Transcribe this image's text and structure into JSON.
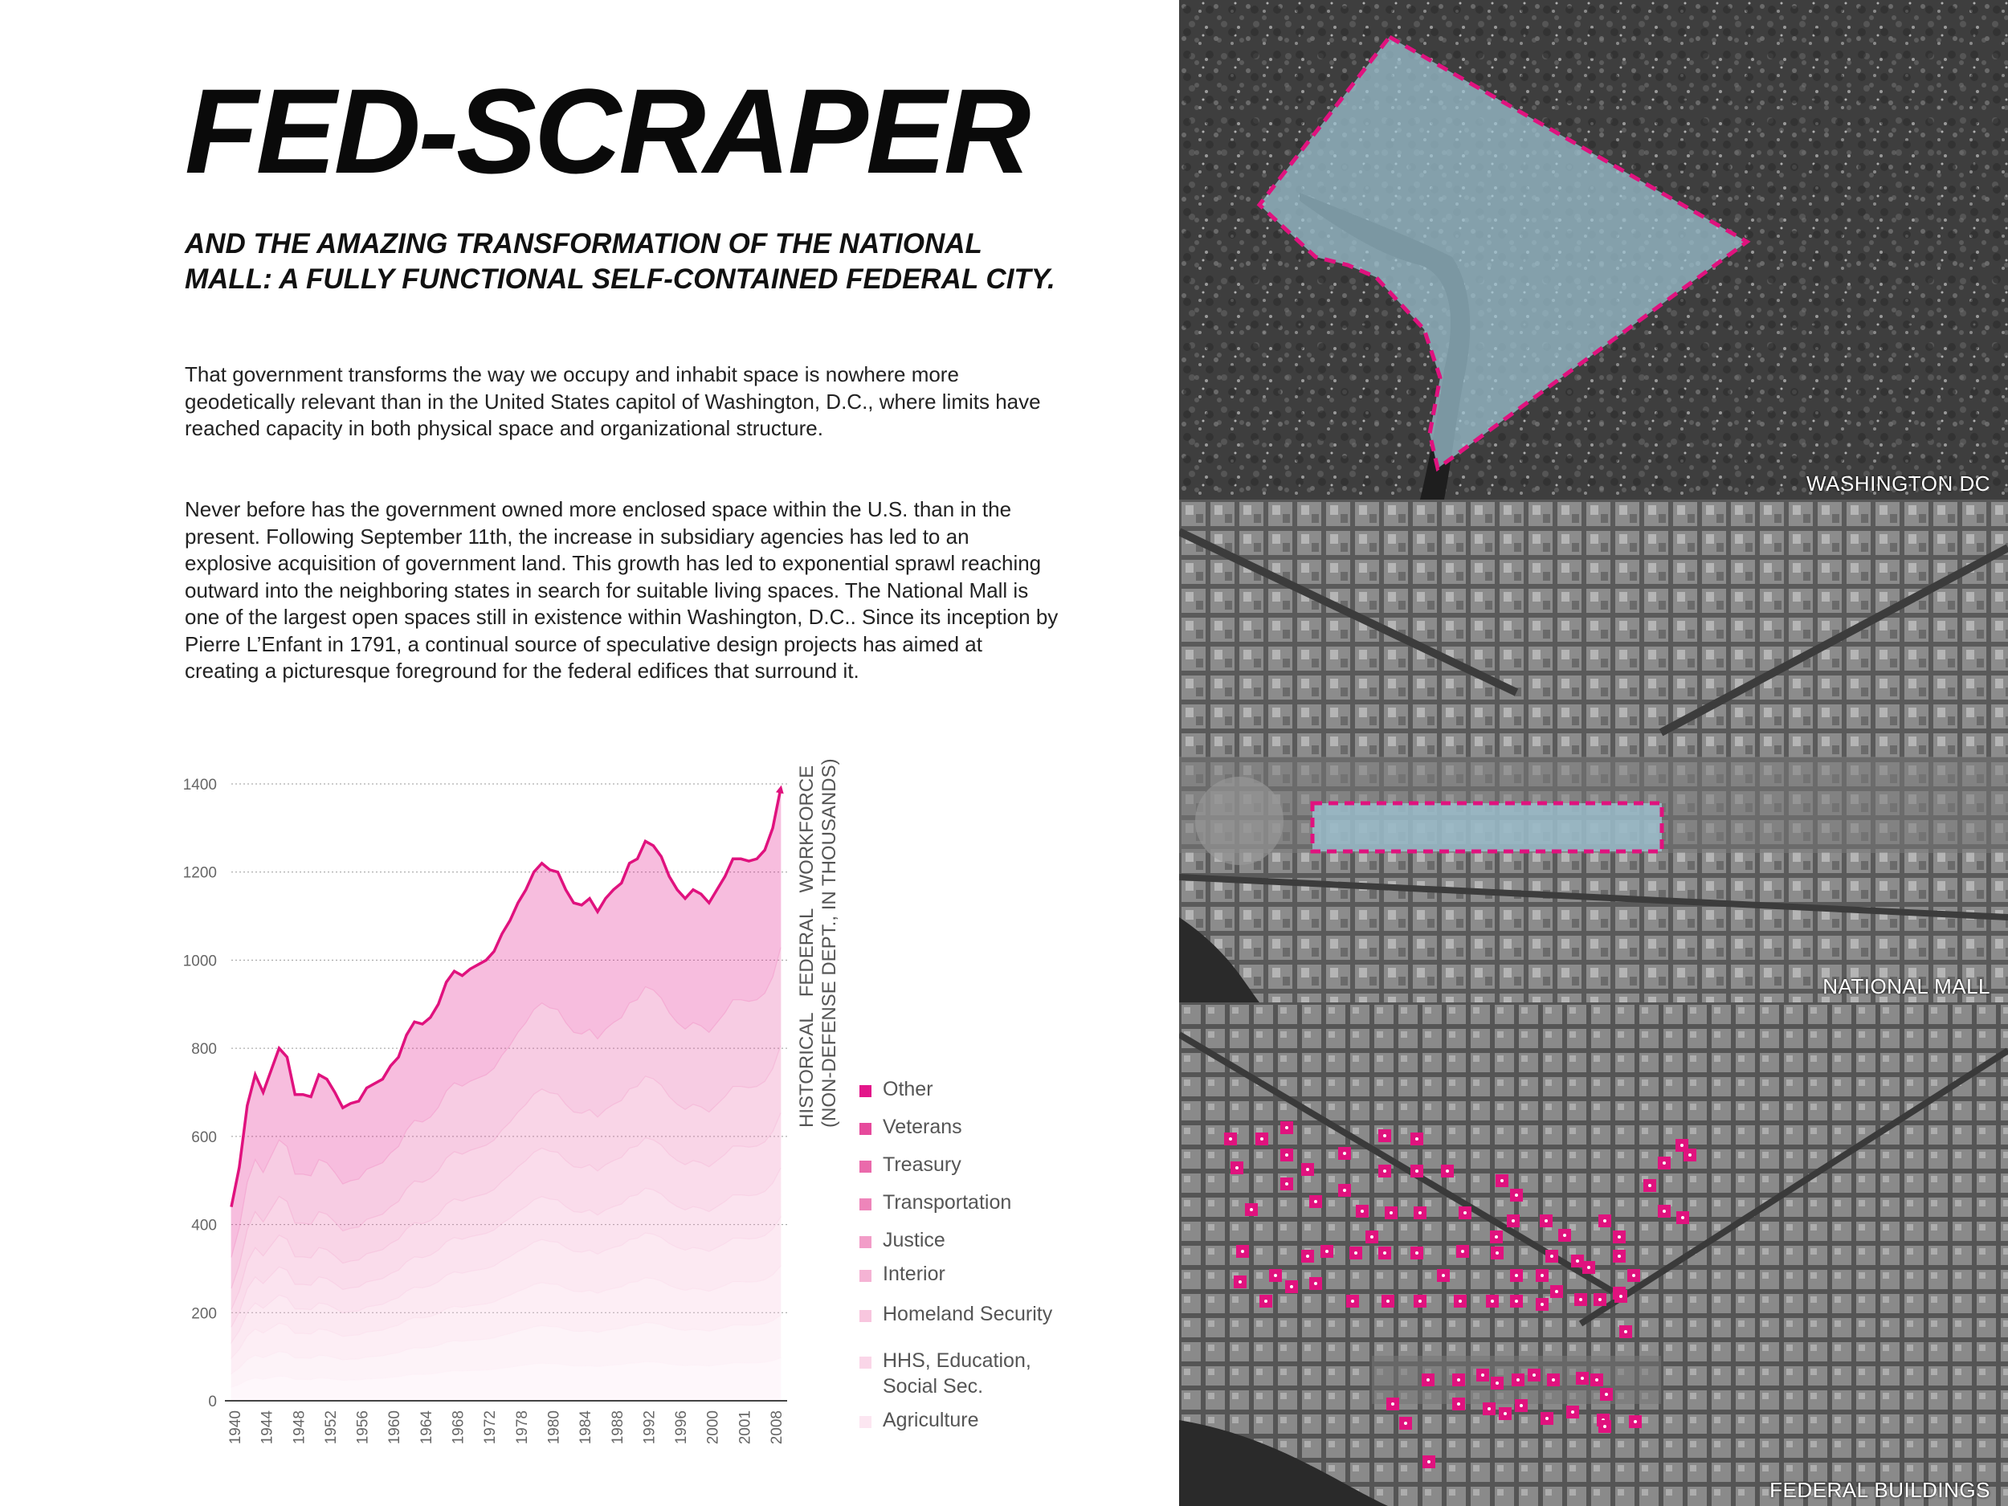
{
  "title": "FED-SCRAPER",
  "subtitle": "AND THE AMAZING TRANSFORMATION OF THE NATIONAL MALL: A FULLY FUNCTIONAL SELF-CONTAINED FEDERAL CITY.",
  "paragraphs": [
    "That government transforms the way we occupy and inhabit space is nowhere more geodetically relevant than in the United States capitol of Washington, D.C., where limits have reached capacity in both physical space and organizational structure.",
    "Never before has the government owned more enclosed space within the U.S. than in the present. Following September 11th, the increase in subsidiary agencies has led to an explosive acquisition of government land. This growth has led to exponential sprawl reaching outward into the neighboring states in search for suitable living spaces. The National Mall is one of the largest open spaces still in existence within Washington, D.C.. Since its inception by Pierre L’Enfant in 1791, a continual source of speculative design projects has aimed at creating a picturesque foreground for the federal edifices that surround it."
  ],
  "maps": [
    {
      "label": "WASHINGTON DC"
    },
    {
      "label": "NATIONAL MALL"
    },
    {
      "label": "FEDERAL BUILDINGS"
    }
  ],
  "colors": {
    "accent": "#e0127e",
    "legend": [
      "#e3168a",
      "#e64a9c",
      "#ea6aab",
      "#ee85ba",
      "#f29dc8",
      "#f5b3d4",
      "#f8c6de",
      "#fad6e8",
      "#fce6f1"
    ]
  },
  "chart_data": {
    "type": "area",
    "title": "HISTORICAL FEDERAL WORKFORCE (NON-DEFENSE DEPT., IN THOUSANDS)",
    "ylabel_line1": "HISTORICAL   FEDERAL   WORKFORCE",
    "ylabel_line2": "(NON-DEFENSE DEPT., IN THOUSANDS)",
    "ylim": [
      0,
      1400
    ],
    "yticks": [
      0,
      200,
      400,
      600,
      800,
      1000,
      1200,
      1400
    ],
    "x": [
      1940,
      1941,
      1942,
      1943,
      1944,
      1945,
      1946,
      1947,
      1948,
      1949,
      1950,
      1951,
      1952,
      1953,
      1954,
      1955,
      1956,
      1957,
      1958,
      1959,
      1960,
      1961,
      1962,
      1963,
      1964,
      1965,
      1966,
      1967,
      1968,
      1969,
      1970,
      1971,
      1972,
      1973,
      1974,
      1975,
      1976,
      1977,
      1978,
      1979,
      1980,
      1981,
      1982,
      1983,
      1984,
      1985,
      1986,
      1987,
      1988,
      1989,
      1990,
      1991,
      1992,
      1993,
      1994,
      1995,
      1996,
      1997,
      1998,
      1999,
      2000,
      2001,
      2002,
      2003,
      2004,
      2005,
      2006,
      2007,
      2008,
      2009
    ],
    "xtick_labels": [
      "1940",
      "1944",
      "1948",
      "1952",
      "1956",
      "1960",
      "1964",
      "1968",
      "1972",
      "1978",
      "1980",
      "1984",
      "1988",
      "1992",
      "1996",
      "2000",
      "2001",
      "2008"
    ],
    "total": [
      440,
      530,
      670,
      740,
      700,
      750,
      800,
      780,
      695,
      695,
      690,
      740,
      730,
      700,
      665,
      675,
      680,
      710,
      720,
      730,
      760,
      780,
      830,
      860,
      855,
      870,
      900,
      950,
      975,
      965,
      980,
      990,
      1000,
      1020,
      1060,
      1090,
      1130,
      1160,
      1200,
      1220,
      1205,
      1200,
      1160,
      1130,
      1125,
      1140,
      1110,
      1140,
      1160,
      1175,
      1220,
      1230,
      1270,
      1260,
      1235,
      1190,
      1160,
      1140,
      1160,
      1150,
      1130,
      1160,
      1190,
      1230,
      1230,
      1225,
      1230,
      1250,
      1300,
      1390
    ],
    "legend": [
      "Other",
      "Veterans",
      "Treasury",
      "Transportation",
      "Justice",
      "Interior",
      "Homeland Security",
      "HHS, Education,\nSocial Sec.",
      "Agriculture"
    ]
  }
}
